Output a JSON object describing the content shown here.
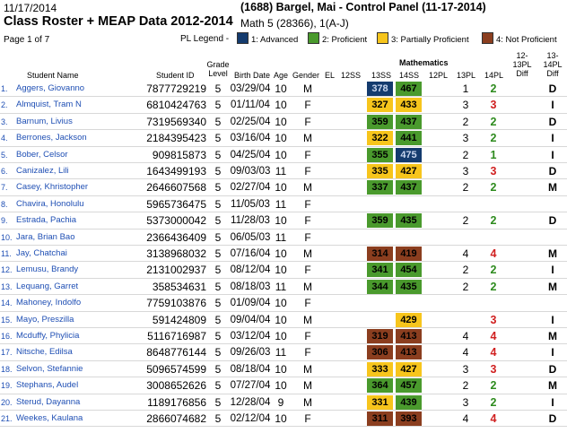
{
  "header": {
    "date": "11/17/2014",
    "teacher_line": "(1688) Bargel, Mai  - Control Panel (11-17-2014)",
    "title": "Class Roster + MEAP Data 2012-2014",
    "course": "Math 5 (28366), 1(A-J)",
    "page_label": "Page    1 of 7",
    "legend_label": "PL Legend -",
    "legend": [
      {
        "key": "adv",
        "label": "1: Advanced",
        "color": "#143b6e"
      },
      {
        "key": "pro",
        "label": "2: Proficient",
        "color": "#4a9a2d"
      },
      {
        "key": "par",
        "label": "3: Partially Proficient",
        "color": "#f7c51c"
      },
      {
        "key": "not",
        "label": "4: Not Proficient",
        "color": "#8b3e1f"
      }
    ]
  },
  "columns": {
    "student_name": "Student Name",
    "student_id": "Student ID",
    "grade_level": "Grade Level",
    "birth_date": "Birth Date",
    "age": "Age",
    "gender": "Gender",
    "el": "EL",
    "ss12": "12SS",
    "group": "Mathematics",
    "ss13": "13SS",
    "ss14": "14SS",
    "pl12": "12PL",
    "pl13": "13PL",
    "pl14": "14PL",
    "diff1213": "12-13PL Diff",
    "diff1314": "13-14PL Diff"
  },
  "pl_text_colors": {
    "1": "#2e8b1e",
    "2": "#2e8b1e",
    "3": "#d02020",
    "4": "#d02020"
  },
  "students": [
    {
      "n": "1.",
      "name": "Aggers, Giovanno",
      "id": "7877729219",
      "grade": "5",
      "bd": "03/29/04",
      "age": "10",
      "gender": "M",
      "s13": "378",
      "s13pl": "adv",
      "s14": "467",
      "s14pl": "pro",
      "pl13": "1",
      "pl14": "2",
      "diff": "D"
    },
    {
      "n": "2.",
      "name": "Almquist, Tram N",
      "id": "6810424763",
      "grade": "5",
      "bd": "01/11/04",
      "age": "10",
      "gender": "F",
      "s13": "327",
      "s13pl": "par",
      "s14": "433",
      "s14pl": "par",
      "pl13": "3",
      "pl14": "3",
      "diff": "I"
    },
    {
      "n": "3.",
      "name": "Barnum, Livius",
      "id": "7319569340",
      "grade": "5",
      "bd": "02/25/04",
      "age": "10",
      "gender": "F",
      "s13": "359",
      "s13pl": "pro",
      "s14": "437",
      "s14pl": "pro",
      "pl13": "2",
      "pl14": "2",
      "diff": "D"
    },
    {
      "n": "4.",
      "name": "Berrones, Jackson",
      "id": "2184395423",
      "grade": "5",
      "bd": "03/16/04",
      "age": "10",
      "gender": "M",
      "s13": "322",
      "s13pl": "par",
      "s14": "441",
      "s14pl": "pro",
      "pl13": "3",
      "pl14": "2",
      "diff": "I"
    },
    {
      "n": "5.",
      "name": "Bober, Celsor",
      "id": "909815873",
      "grade": "5",
      "bd": "04/25/04",
      "age": "10",
      "gender": "F",
      "s13": "355",
      "s13pl": "pro",
      "s14": "475",
      "s14pl": "adv",
      "pl13": "2",
      "pl14": "1",
      "diff": "I"
    },
    {
      "n": "6.",
      "name": "Canizalez, Lili",
      "id": "1643499193",
      "grade": "5",
      "bd": "09/03/03",
      "age": "11",
      "gender": "F",
      "s13": "335",
      "s13pl": "par",
      "s14": "427",
      "s14pl": "par",
      "pl13": "3",
      "pl14": "3",
      "diff": "D"
    },
    {
      "n": "7.",
      "name": "Casey, Khristopher",
      "id": "2646607568",
      "grade": "5",
      "bd": "02/27/04",
      "age": "10",
      "gender": "M",
      "s13": "337",
      "s13pl": "pro",
      "s14": "437",
      "s14pl": "pro",
      "pl13": "2",
      "pl14": "2",
      "diff": "M"
    },
    {
      "n": "8.",
      "name": "Chavira, Honolulu",
      "id": "5965736475",
      "grade": "5",
      "bd": "11/05/03",
      "age": "11",
      "gender": "F",
      "s13": "",
      "s13pl": "",
      "s14": "",
      "s14pl": "",
      "pl13": "",
      "pl14": "",
      "diff": ""
    },
    {
      "n": "9.",
      "name": "Estrada, Pachia",
      "id": "5373000042",
      "grade": "5",
      "bd": "11/28/03",
      "age": "10",
      "gender": "F",
      "s13": "359",
      "s13pl": "pro",
      "s14": "435",
      "s14pl": "pro",
      "pl13": "2",
      "pl14": "2",
      "diff": "D"
    },
    {
      "n": "10.",
      "name": "Jara, Brian Bao",
      "id": "2366436409",
      "grade": "5",
      "bd": "06/05/03",
      "age": "11",
      "gender": "F",
      "s13": "",
      "s13pl": "",
      "s14": "",
      "s14pl": "",
      "pl13": "",
      "pl14": "",
      "diff": ""
    },
    {
      "n": "11.",
      "name": "Jay, Chatchai",
      "id": "3138968032",
      "grade": "5",
      "bd": "07/16/04",
      "age": "10",
      "gender": "M",
      "s13": "314",
      "s13pl": "not",
      "s14": "419",
      "s14pl": "not",
      "pl13": "4",
      "pl14": "4",
      "diff": "M"
    },
    {
      "n": "12.",
      "name": "Lemusu, Brandy",
      "id": "2131002937",
      "grade": "5",
      "bd": "08/12/04",
      "age": "10",
      "gender": "F",
      "s13": "341",
      "s13pl": "pro",
      "s14": "454",
      "s14pl": "pro",
      "pl13": "2",
      "pl14": "2",
      "diff": "I"
    },
    {
      "n": "13.",
      "name": "Lequang, Garret",
      "id": "358534631",
      "grade": "5",
      "bd": "08/18/03",
      "age": "11",
      "gender": "M",
      "s13": "344",
      "s13pl": "pro",
      "s14": "435",
      "s14pl": "pro",
      "pl13": "2",
      "pl14": "2",
      "diff": "M"
    },
    {
      "n": "14.",
      "name": "Mahoney, Indolfo",
      "id": "7759103876",
      "grade": "5",
      "bd": "01/09/04",
      "age": "10",
      "gender": "F",
      "s13": "",
      "s13pl": "",
      "s14": "",
      "s14pl": "",
      "pl13": "",
      "pl14": "",
      "diff": ""
    },
    {
      "n": "15.",
      "name": "Mayo, Preszilla",
      "id": "591424809",
      "grade": "5",
      "bd": "09/04/04",
      "age": "10",
      "gender": "M",
      "s13": "",
      "s13pl": "",
      "s14": "429",
      "s14pl": "par",
      "pl13": "",
      "pl14": "3",
      "diff": "I"
    },
    {
      "n": "16.",
      "name": "Mcduffy, Phylicia",
      "id": "5116716987",
      "grade": "5",
      "bd": "03/12/04",
      "age": "10",
      "gender": "F",
      "s13": "319",
      "s13pl": "not",
      "s14": "413",
      "s14pl": "not",
      "pl13": "4",
      "pl14": "4",
      "diff": "M"
    },
    {
      "n": "17.",
      "name": "Nitsche, Edilsa",
      "id": "8648776144",
      "grade": "5",
      "bd": "09/26/03",
      "age": "11",
      "gender": "F",
      "s13": "306",
      "s13pl": "not",
      "s14": "413",
      "s14pl": "not",
      "pl13": "4",
      "pl14": "4",
      "diff": "I"
    },
    {
      "n": "18.",
      "name": "Selvon, Stefannie",
      "id": "5096574599",
      "grade": "5",
      "bd": "08/18/04",
      "age": "10",
      "gender": "M",
      "s13": "333",
      "s13pl": "par",
      "s14": "427",
      "s14pl": "par",
      "pl13": "3",
      "pl14": "3",
      "diff": "D"
    },
    {
      "n": "19.",
      "name": "Stephans, Audel",
      "id": "3008652626",
      "grade": "5",
      "bd": "07/27/04",
      "age": "10",
      "gender": "M",
      "s13": "364",
      "s13pl": "pro",
      "s14": "457",
      "s14pl": "pro",
      "pl13": "2",
      "pl14": "2",
      "diff": "M"
    },
    {
      "n": "20.",
      "name": "Sterud, Dayanna",
      "id": "1189176856",
      "grade": "5",
      "bd": "12/28/04",
      "age": "9",
      "gender": "M",
      "s13": "331",
      "s13pl": "par",
      "s14": "439",
      "s14pl": "pro",
      "pl13": "3",
      "pl14": "2",
      "diff": "I"
    },
    {
      "n": "21.",
      "name": "Weekes, Kaulana",
      "id": "2866074682",
      "grade": "5",
      "bd": "02/12/04",
      "age": "10",
      "gender": "F",
      "s13": "311",
      "s13pl": "not",
      "s14": "393",
      "s14pl": "not",
      "pl13": "4",
      "pl14": "4",
      "diff": "D"
    }
  ]
}
